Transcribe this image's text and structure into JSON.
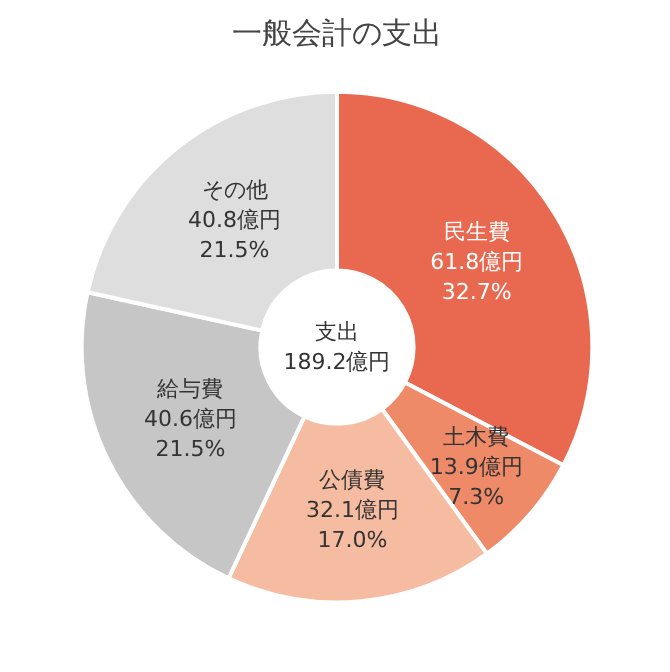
{
  "chart_data": {
    "type": "donut",
    "title": "一般会計の支出",
    "categories": [
      "民生費",
      "土木費",
      "公債費",
      "給与費",
      "その他"
    ],
    "values": [
      61.8,
      13.9,
      32.1,
      40.6,
      40.8
    ],
    "colors": [
      "#e8694f",
      "#ef8a69",
      "#f6bca1",
      "#c6c6c6",
      "#dedede"
    ],
    "value_labels": [
      "61.8億円\n32.7%",
      "13.9億円\n7.3%",
      "32.1億円\n17.0%",
      "40.6億円\n21.5%",
      "40.8億円\n21.5%"
    ],
    "annotations": [
      "支出\n189.2億円"
    ]
  }
}
